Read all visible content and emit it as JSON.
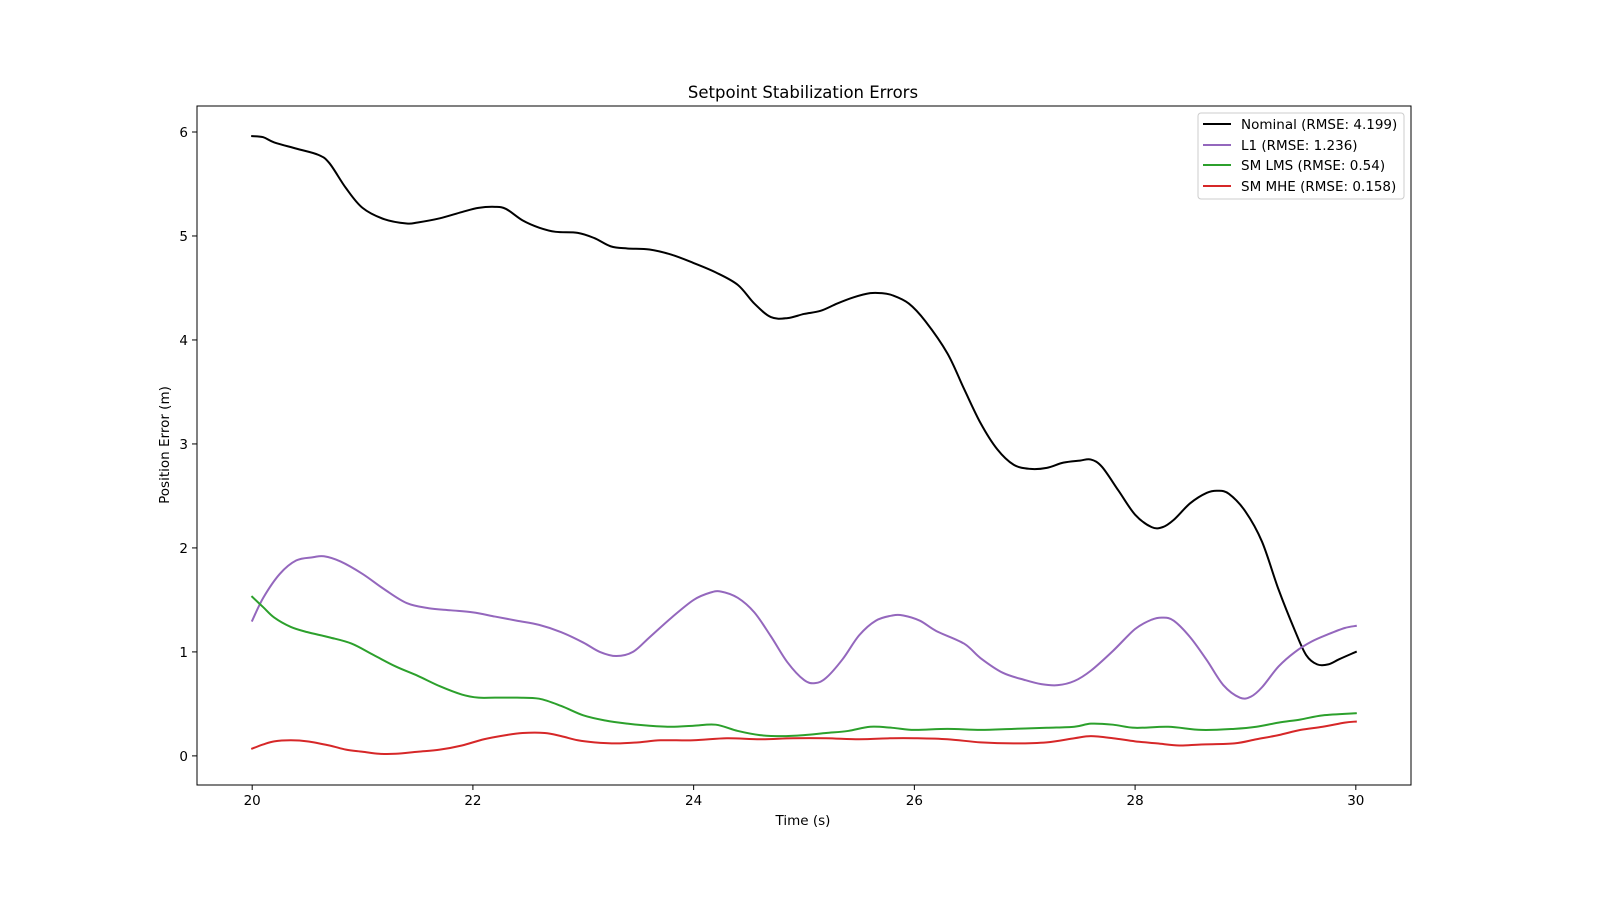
{
  "chart_data": {
    "type": "line",
    "title": "Setpoint Stabilization Errors",
    "xlabel": "Time (s)",
    "ylabel": "Position Error (m)",
    "xlim": [
      19.5,
      30.5
    ],
    "ylim": [
      -0.28,
      6.25
    ],
    "xticks": [
      20,
      22,
      24,
      26,
      28,
      30
    ],
    "yticks": [
      0,
      1,
      2,
      3,
      4,
      5,
      6
    ],
    "grid": false,
    "legend_position": "top-right",
    "series": [
      {
        "name": "Nominal (RMSE: 4.199)",
        "color": "#000000",
        "x": [
          20.0,
          20.1,
          20.2,
          20.4,
          20.6,
          20.7,
          20.85,
          21.0,
          21.2,
          21.4,
          21.5,
          21.7,
          21.9,
          22.05,
          22.2,
          22.3,
          22.45,
          22.6,
          22.75,
          22.95,
          23.1,
          23.25,
          23.4,
          23.6,
          23.8,
          24.0,
          24.2,
          24.4,
          24.55,
          24.7,
          24.85,
          25.0,
          25.15,
          25.3,
          25.45,
          25.6,
          25.7,
          25.8,
          25.95,
          26.1,
          26.3,
          26.45,
          26.6,
          26.75,
          26.9,
          27.05,
          27.2,
          27.35,
          27.5,
          27.6,
          27.7,
          27.85,
          28.0,
          28.15,
          28.25,
          28.35,
          28.5,
          28.65,
          28.75,
          28.85,
          29.0,
          29.15,
          29.3,
          29.45,
          29.55,
          29.65,
          29.75,
          29.85,
          30.0
        ],
        "values": [
          5.96,
          5.95,
          5.9,
          5.84,
          5.78,
          5.7,
          5.46,
          5.27,
          5.16,
          5.12,
          5.13,
          5.17,
          5.23,
          5.27,
          5.28,
          5.26,
          5.15,
          5.08,
          5.04,
          5.03,
          4.98,
          4.9,
          4.88,
          4.87,
          4.82,
          4.74,
          4.65,
          4.53,
          4.35,
          4.22,
          4.21,
          4.25,
          4.28,
          4.35,
          4.41,
          4.45,
          4.45,
          4.43,
          4.35,
          4.18,
          3.87,
          3.53,
          3.2,
          2.95,
          2.8,
          2.76,
          2.77,
          2.82,
          2.84,
          2.85,
          2.78,
          2.55,
          2.32,
          2.2,
          2.2,
          2.27,
          2.43,
          2.53,
          2.55,
          2.52,
          2.35,
          2.06,
          1.6,
          1.2,
          0.97,
          0.88,
          0.88,
          0.93,
          1.0
        ]
      },
      {
        "name": "L1 (RMSE: 1.236)",
        "color": "#9467bd",
        "x": [
          20.0,
          20.1,
          20.25,
          20.4,
          20.55,
          20.65,
          20.8,
          21.0,
          21.2,
          21.4,
          21.6,
          21.8,
          22.0,
          22.2,
          22.4,
          22.6,
          22.8,
          23.0,
          23.15,
          23.3,
          23.45,
          23.6,
          23.8,
          24.0,
          24.15,
          24.25,
          24.4,
          24.55,
          24.7,
          24.85,
          25.0,
          25.1,
          25.2,
          25.35,
          25.5,
          25.65,
          25.8,
          25.9,
          26.05,
          26.2,
          26.45,
          26.6,
          26.8,
          27.0,
          27.15,
          27.3,
          27.45,
          27.6,
          27.8,
          28.0,
          28.15,
          28.25,
          28.35,
          28.5,
          28.65,
          28.8,
          28.95,
          29.05,
          29.15,
          29.3,
          29.45,
          29.6,
          29.75,
          29.9,
          30.0
        ],
        "values": [
          1.3,
          1.52,
          1.75,
          1.88,
          1.91,
          1.92,
          1.87,
          1.75,
          1.6,
          1.47,
          1.42,
          1.4,
          1.38,
          1.34,
          1.3,
          1.26,
          1.19,
          1.09,
          1.0,
          0.96,
          1.0,
          1.14,
          1.33,
          1.5,
          1.57,
          1.58,
          1.52,
          1.38,
          1.15,
          0.9,
          0.73,
          0.7,
          0.75,
          0.93,
          1.16,
          1.3,
          1.35,
          1.35,
          1.3,
          1.2,
          1.08,
          0.94,
          0.8,
          0.73,
          0.69,
          0.68,
          0.72,
          0.82,
          1.01,
          1.22,
          1.31,
          1.33,
          1.3,
          1.14,
          0.92,
          0.68,
          0.56,
          0.57,
          0.66,
          0.86,
          1.0,
          1.1,
          1.17,
          1.23,
          1.25
        ]
      },
      {
        "name": "SM LMS (RMSE: 0.54)",
        "color": "#2ca02c",
        "x": [
          20.0,
          20.1,
          20.2,
          20.35,
          20.5,
          20.7,
          20.9,
          21.1,
          21.3,
          21.5,
          21.7,
          21.9,
          22.05,
          22.2,
          22.4,
          22.6,
          22.8,
          23.0,
          23.2,
          23.4,
          23.6,
          23.8,
          24.0,
          24.2,
          24.4,
          24.6,
          24.8,
          25.0,
          25.2,
          25.4,
          25.6,
          25.8,
          26.0,
          26.3,
          26.6,
          26.9,
          27.2,
          27.45,
          27.6,
          27.8,
          28.0,
          28.3,
          28.6,
          28.9,
          29.1,
          29.3,
          29.5,
          29.7,
          30.0
        ],
        "values": [
          1.53,
          1.43,
          1.33,
          1.24,
          1.19,
          1.14,
          1.08,
          0.97,
          0.86,
          0.77,
          0.67,
          0.59,
          0.56,
          0.56,
          0.56,
          0.55,
          0.48,
          0.39,
          0.34,
          0.31,
          0.29,
          0.28,
          0.29,
          0.3,
          0.24,
          0.2,
          0.19,
          0.2,
          0.22,
          0.24,
          0.28,
          0.27,
          0.25,
          0.26,
          0.25,
          0.26,
          0.27,
          0.28,
          0.31,
          0.3,
          0.27,
          0.28,
          0.25,
          0.26,
          0.28,
          0.32,
          0.35,
          0.39,
          0.41
        ]
      },
      {
        "name": "SM MHE (RMSE: 0.158)",
        "color": "#d62728",
        "x": [
          20.0,
          20.1,
          20.2,
          20.35,
          20.5,
          20.7,
          20.85,
          21.0,
          21.15,
          21.3,
          21.5,
          21.7,
          21.9,
          22.1,
          22.3,
          22.45,
          22.65,
          22.8,
          22.95,
          23.1,
          23.3,
          23.5,
          23.7,
          24.0,
          24.3,
          24.6,
          24.9,
          25.2,
          25.5,
          25.8,
          26.0,
          26.3,
          26.6,
          26.9,
          27.2,
          27.45,
          27.6,
          27.8,
          28.0,
          28.2,
          28.4,
          28.6,
          28.9,
          29.1,
          29.3,
          29.5,
          29.7,
          29.9,
          30.0
        ],
        "values": [
          0.07,
          0.11,
          0.14,
          0.15,
          0.14,
          0.1,
          0.06,
          0.04,
          0.02,
          0.02,
          0.04,
          0.06,
          0.1,
          0.16,
          0.2,
          0.22,
          0.22,
          0.19,
          0.15,
          0.13,
          0.12,
          0.13,
          0.15,
          0.15,
          0.17,
          0.16,
          0.17,
          0.17,
          0.16,
          0.17,
          0.17,
          0.16,
          0.13,
          0.12,
          0.13,
          0.17,
          0.19,
          0.17,
          0.14,
          0.12,
          0.1,
          0.11,
          0.12,
          0.16,
          0.2,
          0.25,
          0.28,
          0.32,
          0.33
        ]
      }
    ]
  }
}
